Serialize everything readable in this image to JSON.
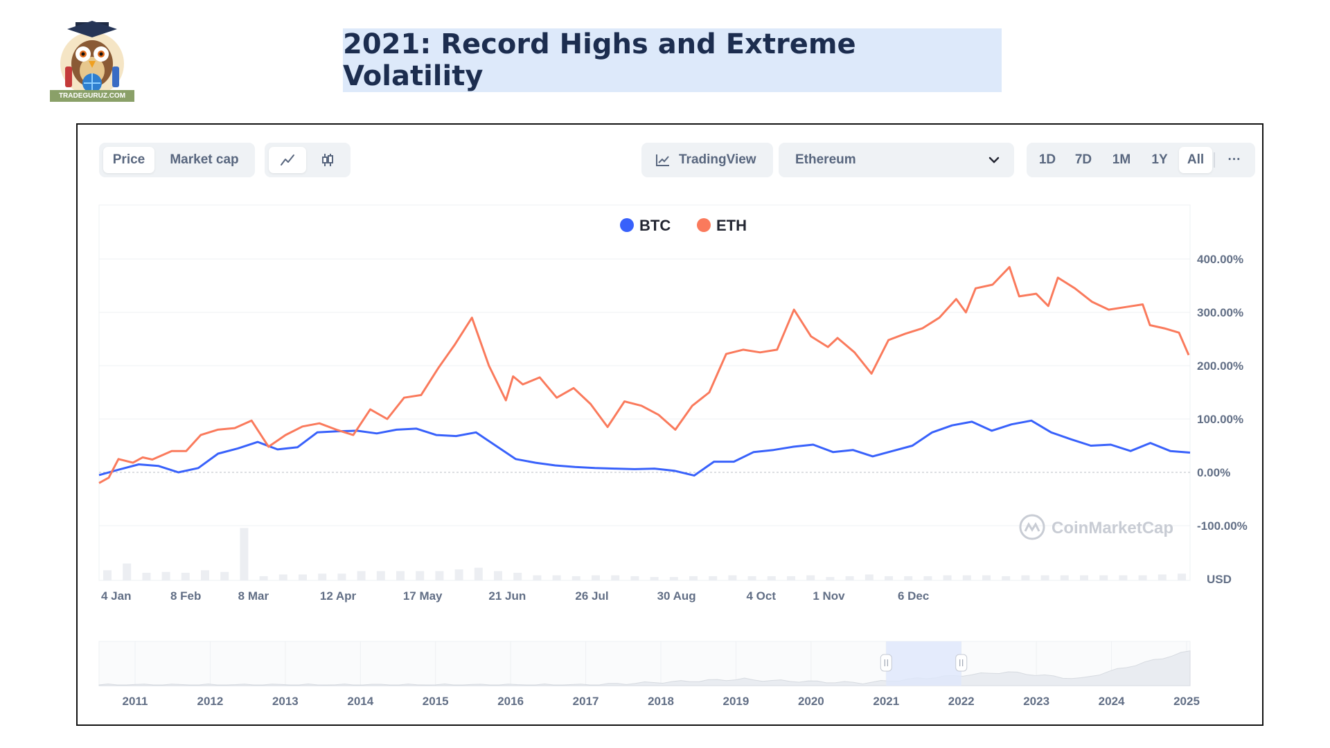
{
  "logo": {
    "caption": "TRADEGURUZ.COM"
  },
  "banner": {
    "title": "2021: Record Highs and Extreme Volatility"
  },
  "toolbar": {
    "metric_tabs": [
      "Price",
      "Market cap"
    ],
    "metric_active": "Price",
    "chart_type_icons": [
      "line-chart-icon",
      "candlestick-icon"
    ],
    "tradingview_label": "TradingView",
    "compare_select": "Ethereum",
    "range_tabs": [
      "1D",
      "7D",
      "1M",
      "1Y",
      "All"
    ],
    "range_active": "All",
    "more_label": "···"
  },
  "watermark": "CoinMarketCap",
  "colors": {
    "btc": "#3861fb",
    "eth": "#fa7a5c",
    "grid": "#eef0f3",
    "volume": "#eceef2",
    "nav_select": "#dfe7fb"
  },
  "chart_data": {
    "type": "line",
    "legend": [
      "BTC",
      "ETH"
    ],
    "legend_position": "top-center",
    "y_unit": "USD",
    "ylim": [
      -100,
      400
    ],
    "y_ticks": [
      400,
      300,
      200,
      100,
      0,
      -100
    ],
    "y_tick_labels": [
      "400.00%",
      "300.00%",
      "200.00%",
      "100.00%",
      "0.00%",
      "-100.00%"
    ],
    "x_range_days": [
      0,
      364
    ],
    "x_ticks": [
      {
        "day": 0,
        "label": "4 Jan"
      },
      {
        "day": 35,
        "label": "8 Feb"
      },
      {
        "day": 63,
        "label": "8 Mar"
      },
      {
        "day": 98,
        "label": "12 Apr"
      },
      {
        "day": 133,
        "label": "17 May"
      },
      {
        "day": 168,
        "label": "21 Jun"
      },
      {
        "day": 203,
        "label": "26 Jul"
      },
      {
        "day": 238,
        "label": "30 Aug"
      },
      {
        "day": 273,
        "label": "4 Oct"
      },
      {
        "day": 301,
        "label": "1 Nov"
      },
      {
        "day": 336,
        "label": "6 Dec"
      }
    ],
    "series": [
      {
        "name": "BTC",
        "points": [
          [
            0,
            -5
          ],
          [
            7,
            5
          ],
          [
            14,
            15
          ],
          [
            21,
            12
          ],
          [
            28,
            0
          ],
          [
            35,
            8
          ],
          [
            42,
            35
          ],
          [
            49,
            45
          ],
          [
            56,
            57
          ],
          [
            63,
            43
          ],
          [
            70,
            47
          ],
          [
            77,
            75
          ],
          [
            84,
            77
          ],
          [
            91,
            78
          ],
          [
            98,
            73
          ],
          [
            105,
            80
          ],
          [
            112,
            82
          ],
          [
            119,
            70
          ],
          [
            126,
            68
          ],
          [
            133,
            75
          ],
          [
            140,
            50
          ],
          [
            147,
            25
          ],
          [
            154,
            18
          ],
          [
            161,
            13
          ],
          [
            168,
            10
          ],
          [
            175,
            8
          ],
          [
            182,
            7
          ],
          [
            189,
            6
          ],
          [
            196,
            7
          ],
          [
            203,
            3
          ],
          [
            210,
            -6
          ],
          [
            217,
            20
          ],
          [
            224,
            20
          ],
          [
            231,
            38
          ],
          [
            238,
            42
          ],
          [
            245,
            48
          ],
          [
            252,
            52
          ],
          [
            259,
            38
          ],
          [
            266,
            42
          ],
          [
            273,
            30
          ],
          [
            280,
            40
          ],
          [
            287,
            50
          ],
          [
            294,
            75
          ],
          [
            301,
            88
          ],
          [
            308,
            95
          ],
          [
            315,
            78
          ],
          [
            322,
            90
          ],
          [
            329,
            97
          ],
          [
            336,
            75
          ],
          [
            343,
            62
          ],
          [
            350,
            50
          ],
          [
            357,
            52
          ],
          [
            364,
            40
          ],
          [
            371,
            55
          ],
          [
            378,
            40
          ],
          [
            385,
            37
          ]
        ]
      },
      {
        "name": "ETH",
        "points": [
          [
            0,
            -20
          ],
          [
            4,
            -10
          ],
          [
            8,
            25
          ],
          [
            14,
            18
          ],
          [
            18,
            28
          ],
          [
            22,
            24
          ],
          [
            30,
            40
          ],
          [
            36,
            40
          ],
          [
            42,
            70
          ],
          [
            49,
            80
          ],
          [
            56,
            83
          ],
          [
            63,
            97
          ],
          [
            70,
            48
          ],
          [
            77,
            70
          ],
          [
            84,
            86
          ],
          [
            91,
            92
          ],
          [
            98,
            80
          ],
          [
            105,
            70
          ],
          [
            112,
            118
          ],
          [
            119,
            100
          ],
          [
            126,
            140
          ],
          [
            133,
            145
          ],
          [
            140,
            195
          ],
          [
            147,
            240
          ],
          [
            154,
            290
          ],
          [
            161,
            200
          ],
          [
            168,
            135
          ],
          [
            171,
            180
          ],
          [
            175,
            165
          ],
          [
            182,
            178
          ],
          [
            189,
            140
          ],
          [
            196,
            158
          ],
          [
            203,
            128
          ],
          [
            210,
            85
          ],
          [
            217,
            133
          ],
          [
            224,
            125
          ],
          [
            231,
            108
          ],
          [
            238,
            80
          ],
          [
            245,
            125
          ],
          [
            252,
            150
          ],
          [
            259,
            222
          ],
          [
            266,
            230
          ],
          [
            273,
            225
          ],
          [
            280,
            230
          ],
          [
            287,
            305
          ],
          [
            294,
            255
          ],
          [
            301,
            235
          ],
          [
            305,
            252
          ],
          [
            312,
            225
          ],
          [
            319,
            185
          ],
          [
            326,
            248
          ],
          [
            333,
            260
          ],
          [
            340,
            270
          ],
          [
            347,
            290
          ],
          [
            354,
            325
          ],
          [
            358,
            300
          ],
          [
            362,
            345
          ],
          [
            369,
            352
          ],
          [
            376,
            385
          ],
          [
            380,
            330
          ],
          [
            387,
            335
          ],
          [
            392,
            312
          ],
          [
            396,
            365
          ],
          [
            403,
            345
          ],
          [
            410,
            320
          ],
          [
            417,
            305
          ],
          [
            424,
            310
          ],
          [
            431,
            315
          ],
          [
            434,
            276
          ],
          [
            440,
            270
          ],
          [
            446,
            262
          ],
          [
            450,
            220
          ]
        ]
      }
    ],
    "volume_bars": [
      12,
      20,
      9,
      10,
      9,
      12,
      10,
      62,
      5,
      7,
      7,
      8,
      8,
      11,
      11,
      11,
      11,
      11,
      13,
      15,
      11,
      9,
      6,
      6,
      5,
      6,
      6,
      5,
      4,
      4,
      5,
      5,
      6,
      5,
      5,
      5,
      6,
      4,
      5,
      7,
      5,
      5,
      5,
      6,
      6,
      6,
      5,
      6,
      6,
      6,
      6,
      6,
      6,
      6,
      7,
      8
    ],
    "navigator": {
      "year_labels": [
        "2011",
        "2012",
        "2013",
        "2014",
        "2015",
        "2016",
        "2017",
        "2018",
        "2019",
        "2020",
        "2021",
        "2022",
        "2023",
        "2024",
        "2025"
      ],
      "selected_range": [
        "2021",
        "2022"
      ]
    }
  }
}
